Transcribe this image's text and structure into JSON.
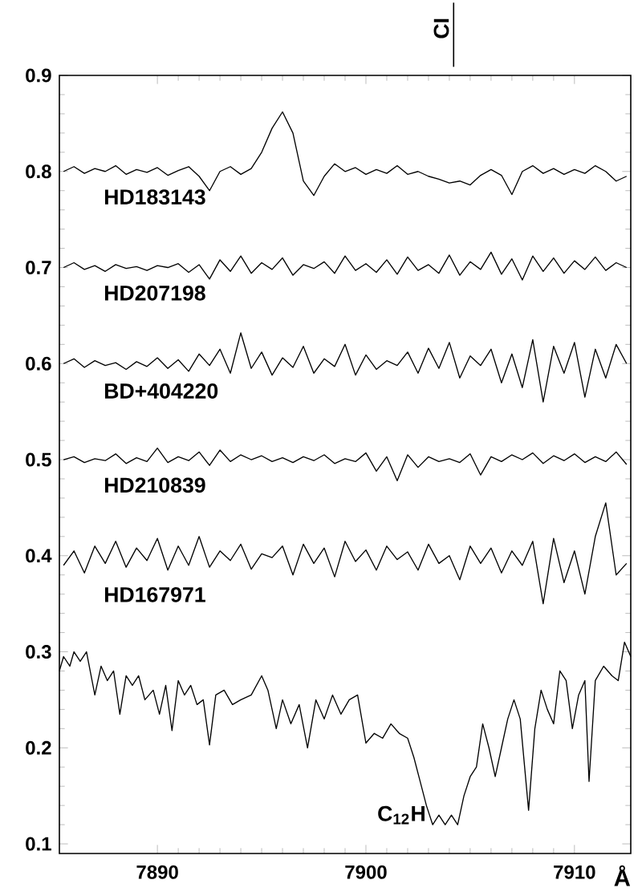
{
  "chart_data": {
    "type": "line",
    "xlabel": "Å",
    "xlim": [
      7885.3,
      7912.7
    ],
    "ylim": [
      0.09,
      0.9
    ],
    "xticks": [
      7890,
      7900,
      7910
    ],
    "yticks": [
      0.1,
      0.2,
      0.3,
      0.4,
      0.5,
      0.6,
      0.7,
      0.8,
      0.9
    ],
    "marker": "none",
    "legend": false,
    "grid": false,
    "annotations": [
      "CI",
      {
        "text": "C$_{12}$H",
        "x": 7903.0,
        "y": 0.13
      }
    ],
    "series": [
      {
        "name": "HD183143",
        "color": "#000000",
        "x": [
          7885.5,
          7886,
          7886.5,
          7887,
          7887.5,
          7888,
          7888.5,
          7889,
          7889.5,
          7890,
          7890.5,
          7891,
          7891.5,
          7892,
          7892.5,
          7893,
          7893.5,
          7894,
          7894.5,
          7895,
          7895.5,
          7896,
          7896.5,
          7897,
          7897.5,
          7898,
          7898.5,
          7899,
          7899.5,
          7900,
          7900.5,
          7901,
          7901.5,
          7902,
          7902.5,
          7903,
          7903.5,
          7904,
          7904.5,
          7905,
          7905.5,
          7906,
          7906.5,
          7907,
          7907.5,
          7908,
          7908.5,
          7909,
          7909.5,
          7910,
          7910.5,
          7911,
          7911.5,
          7912,
          7912.5
        ],
        "values": [
          0.8,
          0.805,
          0.798,
          0.803,
          0.8,
          0.806,
          0.797,
          0.802,
          0.799,
          0.804,
          0.796,
          0.801,
          0.805,
          0.795,
          0.78,
          0.8,
          0.805,
          0.797,
          0.803,
          0.82,
          0.845,
          0.862,
          0.84,
          0.79,
          0.775,
          0.795,
          0.808,
          0.8,
          0.804,
          0.797,
          0.802,
          0.798,
          0.806,
          0.797,
          0.8,
          0.795,
          0.792,
          0.788,
          0.79,
          0.786,
          0.796,
          0.802,
          0.796,
          0.776,
          0.8,
          0.806,
          0.798,
          0.803,
          0.797,
          0.802,
          0.798,
          0.806,
          0.8,
          0.79,
          0.795
        ]
      },
      {
        "name": "HD207198",
        "color": "#000000",
        "x": [
          7885.5,
          7886,
          7886.5,
          7887,
          7887.5,
          7888,
          7888.5,
          7889,
          7889.5,
          7890,
          7890.5,
          7891,
          7891.5,
          7892,
          7892.5,
          7893,
          7893.5,
          7894,
          7894.5,
          7895,
          7895.5,
          7896,
          7896.5,
          7897,
          7897.5,
          7898,
          7898.5,
          7899,
          7899.5,
          7900,
          7900.5,
          7901,
          7901.5,
          7902,
          7902.5,
          7903,
          7903.5,
          7904,
          7904.5,
          7905,
          7905.5,
          7906,
          7906.5,
          7907,
          7907.5,
          7908,
          7908.5,
          7909,
          7909.5,
          7910,
          7910.5,
          7911,
          7911.5,
          7912,
          7912.5
        ],
        "values": [
          0.7,
          0.705,
          0.698,
          0.702,
          0.696,
          0.703,
          0.699,
          0.701,
          0.697,
          0.702,
          0.7,
          0.704,
          0.695,
          0.703,
          0.688,
          0.708,
          0.696,
          0.712,
          0.694,
          0.705,
          0.698,
          0.71,
          0.692,
          0.703,
          0.699,
          0.706,
          0.694,
          0.712,
          0.697,
          0.704,
          0.695,
          0.708,
          0.693,
          0.711,
          0.697,
          0.703,
          0.694,
          0.713,
          0.692,
          0.706,
          0.698,
          0.716,
          0.693,
          0.709,
          0.687,
          0.712,
          0.696,
          0.71,
          0.694,
          0.707,
          0.698,
          0.711,
          0.697,
          0.705,
          0.7
        ]
      },
      {
        "name": "BD+404220",
        "color": "#000000",
        "x": [
          7885.5,
          7886,
          7886.5,
          7887,
          7887.5,
          7888,
          7888.5,
          7889,
          7889.5,
          7890,
          7890.5,
          7891,
          7891.5,
          7892,
          7892.5,
          7893,
          7893.5,
          7894,
          7894.5,
          7895,
          7895.5,
          7896,
          7896.5,
          7897,
          7897.5,
          7898,
          7898.5,
          7899,
          7899.5,
          7900,
          7900.5,
          7901,
          7901.5,
          7902,
          7902.5,
          7903,
          7903.5,
          7904,
          7904.5,
          7905,
          7905.5,
          7906,
          7906.5,
          7907,
          7907.5,
          7908,
          7908.5,
          7909,
          7909.5,
          7910,
          7910.5,
          7911,
          7911.5,
          7912,
          7912.5
        ],
        "values": [
          0.6,
          0.605,
          0.596,
          0.603,
          0.598,
          0.601,
          0.594,
          0.602,
          0.597,
          0.606,
          0.595,
          0.604,
          0.592,
          0.61,
          0.598,
          0.615,
          0.59,
          0.632,
          0.595,
          0.612,
          0.588,
          0.606,
          0.596,
          0.618,
          0.59,
          0.605,
          0.597,
          0.62,
          0.588,
          0.609,
          0.594,
          0.603,
          0.598,
          0.612,
          0.59,
          0.616,
          0.595,
          0.622,
          0.585,
          0.608,
          0.598,
          0.615,
          0.58,
          0.61,
          0.575,
          0.625,
          0.56,
          0.618,
          0.59,
          0.622,
          0.565,
          0.615,
          0.585,
          0.62,
          0.6
        ]
      },
      {
        "name": "HD210839",
        "color": "#000000",
        "x": [
          7885.5,
          7886,
          7886.5,
          7887,
          7887.5,
          7888,
          7888.5,
          7889,
          7889.5,
          7890,
          7890.5,
          7891,
          7891.5,
          7892,
          7892.5,
          7893,
          7893.5,
          7894,
          7894.5,
          7895,
          7895.5,
          7896,
          7896.5,
          7897,
          7897.5,
          7898,
          7898.5,
          7899,
          7899.5,
          7900,
          7900.5,
          7901,
          7901.5,
          7902,
          7902.5,
          7903,
          7903.5,
          7904,
          7904.5,
          7905,
          7905.5,
          7906,
          7906.5,
          7907,
          7907.5,
          7908,
          7908.5,
          7909,
          7909.5,
          7910,
          7910.5,
          7911,
          7911.5,
          7912,
          7912.5
        ],
        "values": [
          0.5,
          0.503,
          0.497,
          0.501,
          0.499,
          0.506,
          0.496,
          0.502,
          0.498,
          0.512,
          0.497,
          0.503,
          0.499,
          0.508,
          0.494,
          0.51,
          0.498,
          0.505,
          0.5,
          0.504,
          0.498,
          0.502,
          0.497,
          0.503,
          0.499,
          0.505,
          0.496,
          0.501,
          0.498,
          0.507,
          0.488,
          0.503,
          0.478,
          0.505,
          0.492,
          0.503,
          0.498,
          0.501,
          0.497,
          0.506,
          0.484,
          0.503,
          0.498,
          0.505,
          0.5,
          0.507,
          0.496,
          0.504,
          0.499,
          0.506,
          0.497,
          0.503,
          0.498,
          0.508,
          0.495
        ]
      },
      {
        "name": "HD167971",
        "color": "#000000",
        "x": [
          7885.5,
          7886,
          7886.5,
          7887,
          7887.5,
          7888,
          7888.5,
          7889,
          7889.5,
          7890,
          7890.5,
          7891,
          7891.5,
          7892,
          7892.5,
          7893,
          7893.5,
          7894,
          7894.5,
          7895,
          7895.5,
          7896,
          7896.5,
          7897,
          7897.5,
          7898,
          7898.5,
          7899,
          7899.5,
          7900,
          7900.5,
          7901,
          7901.5,
          7902,
          7902.5,
          7903,
          7903.5,
          7904,
          7904.5,
          7905,
          7905.5,
          7906,
          7906.5,
          7907,
          7907.5,
          7908,
          7908.5,
          7909,
          7909.5,
          7910,
          7910.5,
          7911,
          7911.5,
          7912,
          7912.5
        ],
        "values": [
          0.39,
          0.405,
          0.382,
          0.41,
          0.392,
          0.415,
          0.388,
          0.408,
          0.395,
          0.418,
          0.385,
          0.41,
          0.39,
          0.42,
          0.388,
          0.405,
          0.395,
          0.412,
          0.386,
          0.402,
          0.398,
          0.41,
          0.38,
          0.412,
          0.392,
          0.408,
          0.378,
          0.415,
          0.394,
          0.406,
          0.385,
          0.41,
          0.396,
          0.404,
          0.385,
          0.412,
          0.392,
          0.4,
          0.375,
          0.41,
          0.392,
          0.408,
          0.382,
          0.405,
          0.39,
          0.415,
          0.35,
          0.418,
          0.372,
          0.405,
          0.36,
          0.42,
          0.455,
          0.38,
          0.392
        ]
      },
      {
        "color": "#000000",
        "x": [
          7885.3,
          7885.5,
          7885.8,
          7886.0,
          7886.3,
          7886.6,
          7887.0,
          7887.3,
          7887.6,
          7887.9,
          7888.2,
          7888.5,
          7888.8,
          7889.1,
          7889.4,
          7889.8,
          7890.1,
          7890.4,
          7890.7,
          7891.0,
          7891.3,
          7891.6,
          7891.9,
          7892.2,
          7892.5,
          7892.8,
          7893.2,
          7893.6,
          7894.0,
          7894.5,
          7895.0,
          7895.3,
          7895.7,
          7896.0,
          7896.4,
          7896.8,
          7897.2,
          7897.6,
          7898.0,
          7898.4,
          7898.8,
          7899.2,
          7899.6,
          7900.0,
          7900.4,
          7900.8,
          7901.2,
          7901.6,
          7902.0,
          7902.3,
          7902.6,
          7902.9,
          7903.2,
          7903.5,
          7903.8,
          7904.1,
          7904.4,
          7904.7,
          7905.0,
          7905.3,
          7905.6,
          7905.9,
          7906.2,
          7906.5,
          7906.8,
          7907.1,
          7907.4,
          7907.8,
          7908.1,
          7908.4,
          7908.7,
          7909.0,
          7909.3,
          7909.6,
          7909.9,
          7910.2,
          7910.5,
          7910.7,
          7911.0,
          7911.4,
          7911.8,
          7912.1,
          7912.4,
          7912.7
        ],
        "values": [
          0.28,
          0.295,
          0.285,
          0.3,
          0.29,
          0.3,
          0.255,
          0.285,
          0.27,
          0.28,
          0.235,
          0.275,
          0.265,
          0.275,
          0.25,
          0.26,
          0.235,
          0.265,
          0.218,
          0.27,
          0.255,
          0.265,
          0.245,
          0.25,
          0.203,
          0.255,
          0.26,
          0.245,
          0.25,
          0.255,
          0.275,
          0.26,
          0.22,
          0.25,
          0.225,
          0.245,
          0.2,
          0.25,
          0.23,
          0.255,
          0.235,
          0.25,
          0.255,
          0.205,
          0.215,
          0.21,
          0.225,
          0.215,
          0.21,
          0.19,
          0.165,
          0.14,
          0.12,
          0.13,
          0.12,
          0.13,
          0.12,
          0.15,
          0.17,
          0.18,
          0.225,
          0.2,
          0.17,
          0.2,
          0.23,
          0.25,
          0.23,
          0.135,
          0.22,
          0.26,
          0.24,
          0.225,
          0.28,
          0.27,
          0.22,
          0.255,
          0.27,
          0.165,
          0.27,
          0.285,
          0.275,
          0.27,
          0.31,
          0.295
        ]
      }
    ]
  }
}
